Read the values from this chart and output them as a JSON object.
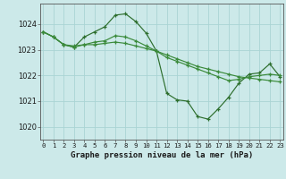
{
  "title": "Graphe pression niveau de la mer (hPa)",
  "bg_color": "#cce9e9",
  "grid_color": "#aad4d4",
  "line_color_dark": "#2d6e2d",
  "line_color_light": "#3a8a3a",
  "ylim": [
    1019.5,
    1024.8
  ],
  "yticks": [
    1020,
    1021,
    1022,
    1023,
    1024
  ],
  "series1": [
    1023.7,
    1023.5,
    1023.2,
    1023.1,
    1023.5,
    1023.7,
    1023.9,
    1024.35,
    1024.4,
    1024.1,
    1023.65,
    1022.95,
    1021.3,
    1021.05,
    1021.0,
    1020.4,
    1020.3,
    1020.7,
    1021.15,
    1021.7,
    1022.05,
    1022.1,
    1022.45,
    1021.95
  ],
  "series2": [
    1023.7,
    1023.5,
    1023.2,
    1023.15,
    1023.2,
    1023.2,
    1023.25,
    1023.3,
    1023.25,
    1023.15,
    1023.05,
    1022.95,
    1022.8,
    1022.65,
    1022.5,
    1022.35,
    1022.25,
    1022.15,
    1022.05,
    1021.95,
    1021.9,
    1021.85,
    1021.8,
    1021.75
  ],
  "series3": [
    1023.7,
    1023.5,
    1023.2,
    1023.1,
    1023.2,
    1023.3,
    1023.35,
    1023.55,
    1023.5,
    1023.35,
    1023.15,
    1022.95,
    1022.7,
    1022.55,
    1022.4,
    1022.25,
    1022.1,
    1021.95,
    1021.8,
    1021.85,
    1021.95,
    1022.0,
    1022.05,
    1022.0
  ]
}
